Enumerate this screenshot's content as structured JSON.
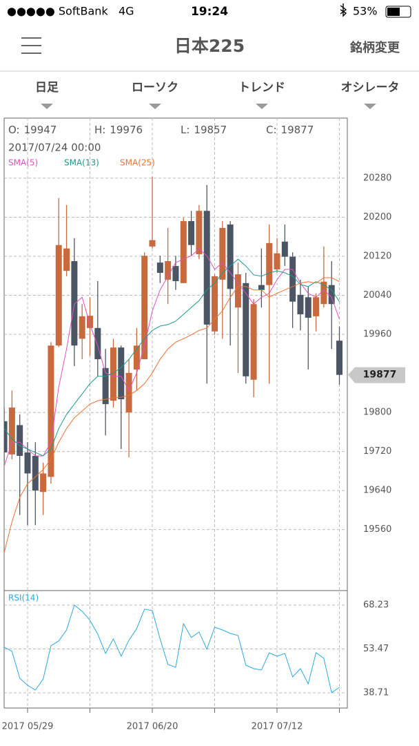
{
  "status_bar": {
    "carrier": "●●●●● SoftBank",
    "network": "4G",
    "time": "19:24",
    "battery": "53%"
  },
  "nav": {
    "title": "日本225",
    "action": "銘柄変更"
  },
  "tabs": [
    "日足",
    "ローソク",
    "トレンド",
    "オシレータ"
  ],
  "chart_data": {
    "type": "candlestick",
    "info": [
      {
        "label": "O:",
        "value": 19947
      },
      {
        "label": "H:",
        "value": 19976
      },
      {
        "label": "L:",
        "value": 19857
      },
      {
        "label": "C:",
        "value": 19877
      }
    ],
    "date": "2017/07/24 00:00",
    "categories": [
      null,
      null,
      null,
      "2017 05/29",
      null,
      null,
      null,
      null,
      null,
      null,
      null,
      null,
      null,
      null,
      null,
      null,
      null,
      null,
      null,
      "2017 06/20",
      null,
      null,
      null,
      null,
      null,
      null,
      null,
      null,
      null,
      null,
      null,
      null,
      null,
      null,
      null,
      "2017 07/12",
      null,
      null,
      null,
      null,
      null,
      null,
      null,
      null
    ],
    "open": [
      19782,
      19714,
      19774,
      19718,
      19711,
      19637,
      19668,
      19937,
      20090,
      20110,
      19951,
      19973,
      19973,
      19891,
      19824,
      19933,
      19800,
      19888,
      19909,
      20140,
      20107,
      20072,
      20100,
      20065,
      20192,
      20124,
      20213,
      19966,
      20072,
      20185,
      20015,
      20065,
      19867,
      20061,
      20061,
      20093,
      20150,
      20119,
      20041,
      20036,
      19997,
      20022,
      20061,
      19947
    ],
    "high": [
      19810,
      19845,
      19796,
      19739,
      19739,
      19697,
      19944,
      20239,
      20225,
      20157,
      20022,
      20036,
      20069,
      19930,
      19951,
      19937,
      19909,
      19973,
      20128,
      20283,
      20121,
      20178,
      20121,
      20199,
      20213,
      20225,
      20266,
      20083,
      20192,
      20192,
      20107,
      20086,
      20032,
      20136,
      20185,
      20157,
      20185,
      20128,
      20072,
      20058,
      20044,
      20140,
      20110,
      19976
    ],
    "low": [
      19697,
      19704,
      19590,
      19569,
      19569,
      19590,
      19654,
      19934,
      20079,
      19895,
      19909,
      19916,
      19874,
      19753,
      19810,
      19725,
      19708,
      19845,
      19909,
      20136,
      20065,
      20022,
      20051,
      20065,
      20121,
      20114,
      19859,
      19959,
      19951,
      19937,
      19881,
      19859,
      19831,
      20015,
      19859,
      20086,
      20100,
      19973,
      19968,
      19888,
      19966,
      20015,
      19930,
      19857
    ],
    "close": [
      19718,
      19810,
      19711,
      19675,
      19640,
      19675,
      19937,
      20143,
      20136,
      19937,
      19997,
      19998,
      19909,
      19817,
      19933,
      19827,
      19881,
      19937,
      20121,
      20153,
      20086,
      20110,
      20069,
      20192,
      20143,
      20213,
      19980,
      20079,
      20178,
      20053,
      20083,
      19874,
      20022,
      20051,
      20147,
      20126,
      20119,
      20027,
      20001,
      19994,
      20036,
      20068,
      20022,
      19877
    ],
    "up_color": "#c96a3e",
    "down_color": "#4c5563",
    "lines": [
      {
        "name": "SMA(5)",
        "color": "#e050c0",
        "values": [
          19690,
          19739,
          19739,
          19725,
          19711,
          19711,
          19739,
          19852,
          19930,
          20022,
          20036,
          19980,
          19937,
          19881,
          19874,
          19874,
          19845,
          19881,
          19937,
          20008,
          20051,
          20079,
          20107,
          20114,
          20121,
          20135,
          20121,
          20093,
          20107,
          20086,
          20065,
          20044,
          20022,
          20036,
          20044,
          20072,
          20093,
          20093,
          20065,
          20044,
          20036,
          20051,
          20036,
          19991
        ]
      },
      {
        "name": "SMA(13)",
        "color": "#1a9a8c",
        "values": [
          19767,
          19746,
          19732,
          19725,
          19718,
          19711,
          19725,
          19767,
          19796,
          19817,
          19838,
          19859,
          19874,
          19874,
          19881,
          19892,
          19909,
          19930,
          19951,
          19968,
          19977,
          19980,
          19987,
          20001,
          20015,
          20029,
          20051,
          20065,
          20086,
          20100,
          20114,
          20100,
          20082,
          20079,
          20086,
          20090,
          20086,
          20079,
          20062,
          20058,
          20068,
          20061,
          20051,
          20027
        ]
      },
      {
        "name": "SMA(25)",
        "color": "#f07030",
        "values": [
          19513,
          19576,
          19626,
          19654,
          19668,
          19683,
          19704,
          19739,
          19767,
          19789,
          19803,
          19817,
          19824,
          19827,
          19830,
          19831,
          19835,
          19845,
          19859,
          19881,
          19909,
          19930,
          19944,
          19951,
          19959,
          19968,
          19973,
          19991,
          20008,
          20036,
          20058,
          20058,
          20051,
          20051,
          20036,
          20044,
          20051,
          20058,
          20065,
          20068,
          20065,
          20076,
          20076,
          20068
        ]
      }
    ],
    "ylim": [
      19435,
      20403
    ],
    "yticks": [
      19560,
      19640,
      19720,
      19800,
      19960,
      20040,
      20120,
      20200,
      20280
    ],
    "grid": true,
    "indicator": {
      "name": "RSI(14)",
      "color": "#29a8e0",
      "ylim": [
        33.6,
        73.1
      ],
      "yticks": [
        38.71,
        53.47,
        68.23
      ],
      "values": [
        54.05,
        52.66,
        43.6,
        41.27,
        39.64,
        43.36,
        54.52,
        56.15,
        59.86,
        68.23,
        66.14,
        63.12,
        58.47,
        51.96,
        56.84,
        51.03,
        56.38,
        60.33,
        66.84,
        66.37,
        56.84,
        48.24,
        47.31,
        61.96,
        57.31,
        59.17,
        53.36,
        60.79,
        59.86,
        58.7,
        58.0,
        48.01,
        46.85,
        46.38,
        52.19,
        51.03,
        51.96,
        44.06,
        46.85,
        41.74,
        52.19,
        50.34,
        38.72,
        40.57
      ]
    }
  }
}
